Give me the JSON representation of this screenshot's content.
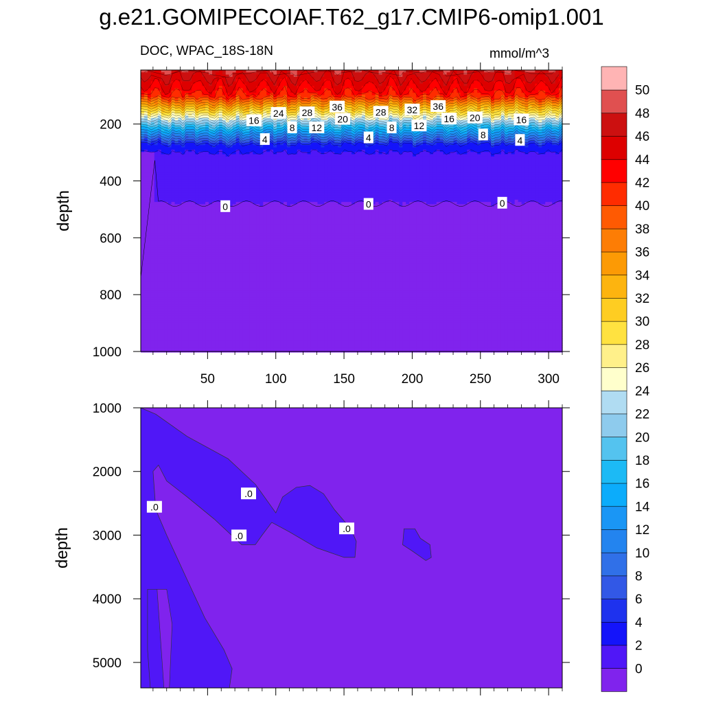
{
  "title": "g.e21.GOMIPECOIAF.T62_g17.CMIP6-omip1.001",
  "subtitle_left": "DOC, WPAC_18S-18N",
  "subtitle_right": "mmol/m^3",
  "chart_data": [
    {
      "type": "contour",
      "panel": "upper",
      "ylabel": "depth",
      "xlabel": "",
      "xlim": [
        1,
        310
      ],
      "ylim": [
        1000,
        10
      ],
      "x_ticks": [
        50,
        100,
        150,
        200,
        250,
        300
      ],
      "y_ticks": [
        200,
        400,
        600,
        800,
        1000
      ],
      "contour_labels": [
        {
          "x": 145,
          "y": 140,
          "value": "36"
        },
        {
          "x": 200,
          "y": 150,
          "value": "32"
        },
        {
          "x": 219,
          "y": 138,
          "value": "36"
        },
        {
          "x": 102,
          "y": 162,
          "value": "24"
        },
        {
          "x": 123,
          "y": 160,
          "value": "28"
        },
        {
          "x": 177,
          "y": 158,
          "value": "28"
        },
        {
          "x": 149,
          "y": 183,
          "value": "20"
        },
        {
          "x": 246,
          "y": 178,
          "value": "20"
        },
        {
          "x": 84,
          "y": 188,
          "value": "16"
        },
        {
          "x": 227,
          "y": 182,
          "value": "16"
        },
        {
          "x": 280,
          "y": 185,
          "value": "16"
        },
        {
          "x": 112,
          "y": 213,
          "value": "8"
        },
        {
          "x": 130,
          "y": 213,
          "value": "12"
        },
        {
          "x": 185,
          "y": 213,
          "value": "8"
        },
        {
          "x": 205,
          "y": 206,
          "value": "12"
        },
        {
          "x": 92,
          "y": 254,
          "value": "4"
        },
        {
          "x": 168,
          "y": 248,
          "value": "4"
        },
        {
          "x": 252,
          "y": 238,
          "value": "8"
        },
        {
          "x": 279,
          "y": 257,
          "value": "4"
        },
        {
          "x": 63,
          "y": 490,
          "value": "0"
        },
        {
          "x": 168,
          "y": 482,
          "value": "0"
        },
        {
          "x": 266,
          "y": 478,
          "value": "0"
        }
      ]
    },
    {
      "type": "contour",
      "panel": "lower",
      "ylabel": "depth",
      "xlabel": "",
      "xlim": [
        1,
        310
      ],
      "ylim": [
        5400,
        1000
      ],
      "x_ticks": [
        50,
        100,
        150,
        200,
        250,
        300
      ],
      "y_ticks": [
        1000,
        2000,
        3000,
        4000,
        5000
      ],
      "contour_labels": [
        {
          "x": 80,
          "y": 2350,
          "value": ".0"
        },
        {
          "x": 11,
          "y": 2560,
          "value": ".0"
        },
        {
          "x": 73,
          "y": 3010,
          "value": ".0"
        },
        {
          "x": 152,
          "y": 2900,
          "value": ".0"
        }
      ]
    }
  ],
  "colorbar": {
    "levels": [
      "0",
      "2",
      "4",
      "6",
      "8",
      "10",
      "12",
      "14",
      "16",
      "18",
      "20",
      "22",
      "24",
      "26",
      "28",
      "30",
      "32",
      "34",
      "36",
      "38",
      "40",
      "42",
      "44",
      "46",
      "48",
      "50"
    ],
    "colors": [
      "#8023ed",
      "#5017f7",
      "#1414fa",
      "#1e32ee",
      "#3258e6",
      "#3070e8",
      "#2384ef",
      "#1a96f5",
      "#0cacfb",
      "#1cbaf5",
      "#54c3ef",
      "#8ecbed",
      "#b0dcf2",
      "#ffffcc",
      "#fff08a",
      "#ffe240",
      "#fecd22",
      "#fdb40f",
      "#fc9a05",
      "#fd7d05",
      "#ff5a02",
      "#ff2c00",
      "#ff0000",
      "#dd0000",
      "#cc1010",
      "#e05050",
      "#ffb4b4"
    ]
  }
}
